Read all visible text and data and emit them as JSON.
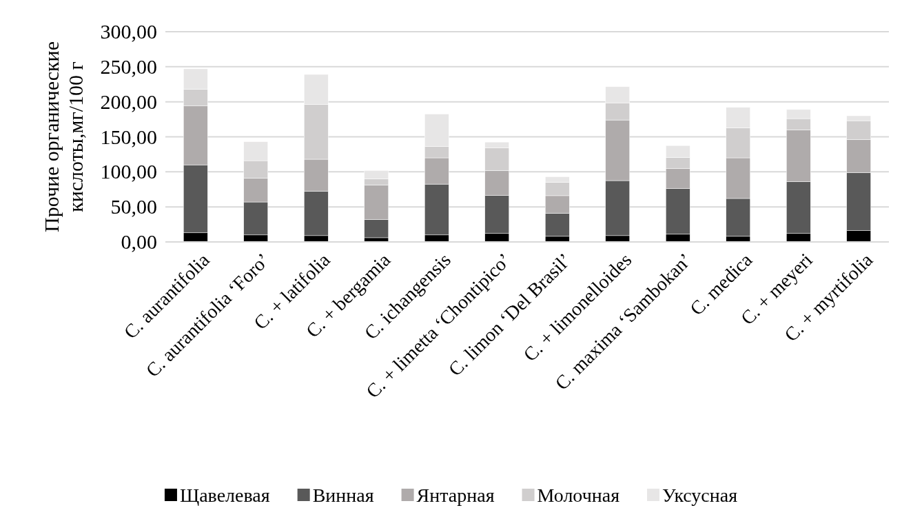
{
  "chart_data": {
    "type": "bar",
    "stacked": true,
    "ylabel": "Прочие органические\nкислоты,мг/100 г",
    "categories": [
      "C. aurantifolia",
      "C. aurantifolia ‘Foro’",
      "C. + latifolia",
      "C. + bergamia",
      "C. ichangensis",
      "C. + limetta ‘Chontipico’",
      "C. limon ‘Del Brasil’",
      "C. + limonelloides",
      "C. maxima ‘Sambokan’",
      "C. medica",
      "C. + meyeri",
      "C. + myrtifolia"
    ],
    "series": [
      {
        "name": "Щавелевая",
        "color": "#000000",
        "values": [
          13,
          10,
          9,
          6,
          10,
          12,
          8,
          9,
          11,
          8,
          12,
          16
        ]
      },
      {
        "name": "Винная",
        "color": "#595959",
        "values": [
          97,
          47,
          63.5,
          26,
          72.5,
          54.5,
          33,
          78.5,
          65,
          54,
          74,
          83
        ]
      },
      {
        "name": "Янтарная",
        "color": "#afabab",
        "values": [
          84,
          34,
          45.5,
          49,
          37.5,
          35.5,
          25,
          86.5,
          28.5,
          58,
          74,
          47
        ]
      },
      {
        "name": "Молочная",
        "color": "#d0cece",
        "values": [
          24,
          25,
          78,
          9,
          16,
          32,
          19,
          24.5,
          16,
          43,
          16,
          27
        ]
      },
      {
        "name": "Уксусная",
        "color": "#e7e6e6",
        "values": [
          29,
          27,
          43,
          12,
          46.5,
          8.5,
          8,
          23,
          17,
          29,
          13,
          7
        ]
      }
    ],
    "ylim": [
      0,
      300
    ],
    "yticks": [
      {
        "value": 0,
        "label": "0,00"
      },
      {
        "value": 50,
        "label": "50,00"
      },
      {
        "value": 100,
        "label": "100,00"
      },
      {
        "value": 150,
        "label": "150,00"
      },
      {
        "value": 200,
        "label": "200,00"
      },
      {
        "value": 250,
        "label": "250,00"
      },
      {
        "value": 300,
        "label": "300,00"
      }
    ],
    "grid": "y",
    "legend": "bottom"
  }
}
